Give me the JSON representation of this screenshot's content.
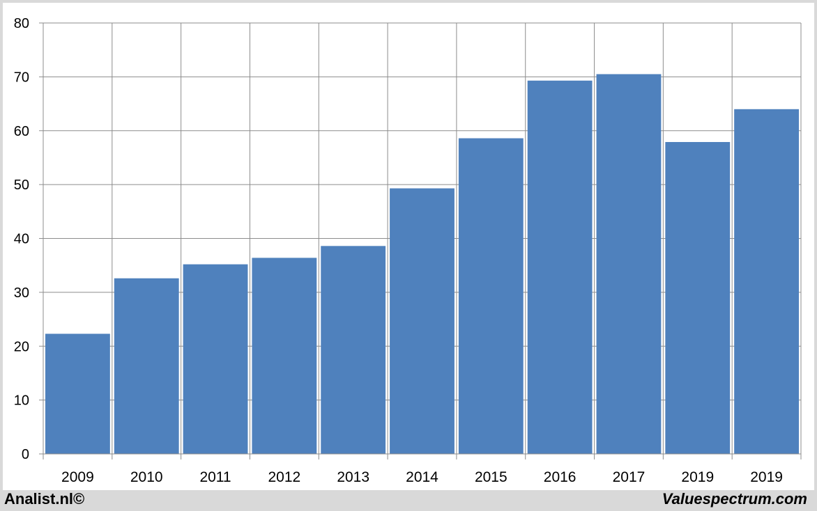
{
  "chart_data": {
    "type": "bar",
    "categories": [
      "2009",
      "2010",
      "2011",
      "2012",
      "2013",
      "2014",
      "2015",
      "2016",
      "2017",
      "2019",
      "2019"
    ],
    "values": [
      22.3,
      32.6,
      35.2,
      36.4,
      38.6,
      49.3,
      58.6,
      69.3,
      70.5,
      57.9,
      64.0
    ],
    "ylim": [
      0,
      80
    ],
    "yticks": [
      0,
      10,
      20,
      30,
      40,
      50,
      60,
      70,
      80
    ],
    "grid": true,
    "bar_color": "#4f81bd"
  },
  "footer": {
    "left": "Analist.nl©",
    "right": "Valuespectrum.com"
  }
}
